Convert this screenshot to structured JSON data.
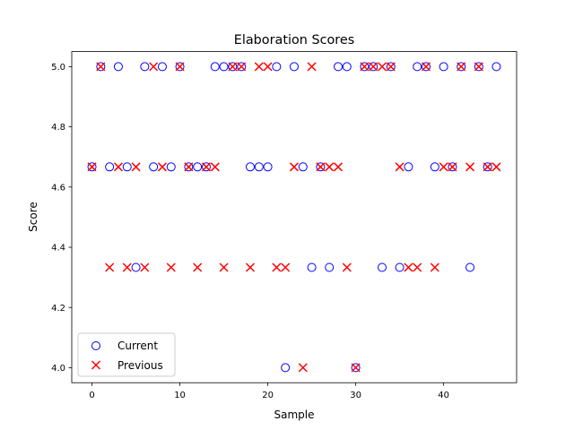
{
  "chart_data": {
    "type": "scatter",
    "title": "Elaboration Scores",
    "xlabel": "Sample",
    "ylabel": "Score",
    "xlim": [
      -2.3,
      48.3
    ],
    "ylim": [
      3.95,
      5.05
    ],
    "xticks": [
      0,
      10,
      20,
      30,
      40
    ],
    "xtick_labels": [
      "0",
      "10",
      "20",
      "30",
      "40"
    ],
    "yticks": [
      4.0,
      4.2,
      4.4,
      4.6,
      4.8,
      5.0
    ],
    "ytick_labels": [
      "4.0",
      "4.2",
      "4.4",
      "4.6",
      "4.8",
      "5.0"
    ],
    "grid": false,
    "legend": {
      "placement": "lower-left"
    },
    "series": [
      {
        "name": "Current",
        "marker": "circle-open",
        "color": "#0000ff",
        "x": [
          0,
          1,
          2,
          3,
          4,
          5,
          6,
          7,
          8,
          9,
          10,
          11,
          12,
          13,
          14,
          15,
          16,
          17,
          18,
          19,
          20,
          21,
          22,
          23,
          24,
          25,
          26,
          27,
          28,
          29,
          30,
          31,
          32,
          33,
          34,
          35,
          36,
          37,
          38,
          39,
          40,
          41,
          42,
          43,
          44,
          45,
          46
        ],
        "y": [
          4.667,
          5.0,
          4.667,
          5.0,
          4.667,
          4.333,
          5.0,
          4.667,
          5.0,
          4.667,
          5.0,
          4.667,
          4.667,
          4.667,
          5.0,
          5.0,
          5.0,
          5.0,
          4.667,
          4.667,
          4.667,
          5.0,
          4.0,
          5.0,
          4.667,
          4.333,
          4.667,
          4.333,
          5.0,
          5.0,
          4.0,
          5.0,
          5.0,
          4.333,
          5.0,
          4.333,
          4.667,
          5.0,
          5.0,
          4.667,
          5.0,
          4.667,
          5.0,
          4.333,
          5.0,
          4.667,
          5.0
        ]
      },
      {
        "name": "Previous",
        "marker": "x",
        "color": "#ff0000",
        "x": [
          0,
          1,
          2,
          3,
          4,
          5,
          6,
          7,
          8,
          9,
          10,
          11,
          12,
          13,
          14,
          15,
          16,
          17,
          18,
          19,
          20,
          21,
          22,
          23,
          24,
          25,
          26,
          27,
          28,
          29,
          30,
          31,
          32,
          33,
          34,
          35,
          36,
          37,
          38,
          39,
          40,
          41,
          42,
          43,
          44,
          45,
          46
        ],
        "y": [
          4.667,
          5.0,
          4.333,
          4.667,
          4.333,
          4.667,
          4.333,
          5.0,
          4.667,
          4.333,
          5.0,
          4.667,
          4.333,
          4.667,
          4.667,
          4.333,
          5.0,
          5.0,
          4.333,
          5.0,
          5.0,
          4.333,
          4.333,
          4.667,
          4.0,
          5.0,
          4.667,
          4.667,
          4.667,
          4.333,
          4.0,
          5.0,
          5.0,
          5.0,
          5.0,
          4.667,
          4.333,
          4.333,
          5.0,
          4.333,
          4.667,
          4.667,
          5.0,
          4.667,
          5.0,
          4.667,
          4.667
        ]
      }
    ]
  }
}
